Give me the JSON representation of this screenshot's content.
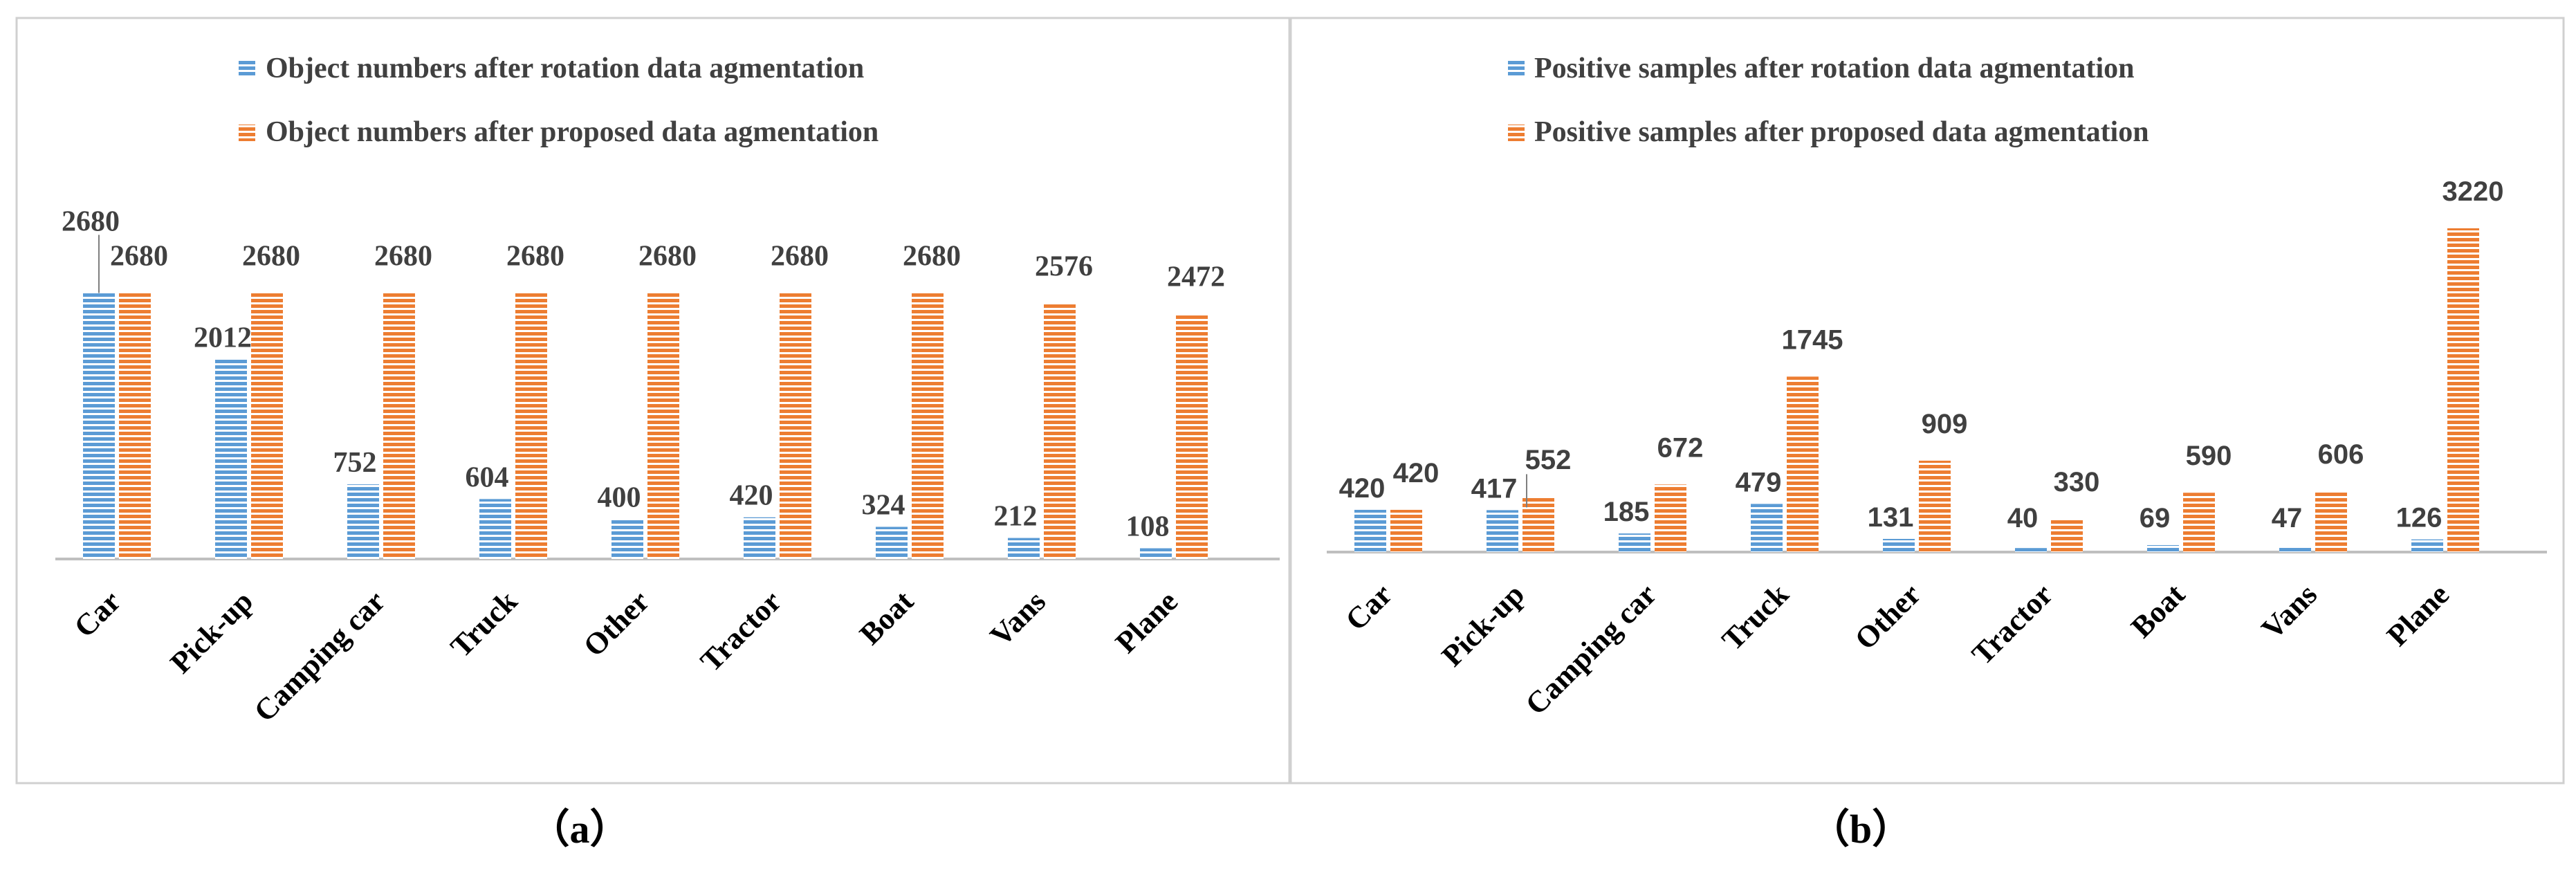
{
  "colors": {
    "series1": "#5b9bd5",
    "series2": "#ed7d31",
    "stripe": "#ffffff",
    "frame": "#d0d0d0",
    "axis": "#bfbfbf",
    "text": "#404040"
  },
  "chart_data": [
    {
      "type": "bar",
      "panel_label": "（a）",
      "title": "",
      "xlabel": "",
      "ylabel": "",
      "ylim": [
        0,
        3220
      ],
      "legend_position": "top-center",
      "grid": false,
      "categories": [
        "Car",
        "Pick-up",
        "Camping car",
        "Truck",
        "Other",
        "Tractor",
        "Boat",
        "Vans",
        "Plane"
      ],
      "series": [
        {
          "name": "Object numbers after rotation data agmentation",
          "values": [
            2680,
            2012,
            752,
            604,
            400,
            420,
            324,
            212,
            108
          ]
        },
        {
          "name": "Object numbers after proposed data agmentation",
          "values": [
            2680,
            2680,
            2680,
            2680,
            2680,
            2680,
            2680,
            2576,
            2472
          ]
        }
      ]
    },
    {
      "type": "bar",
      "panel_label": "（b）",
      "title": "",
      "xlabel": "",
      "ylabel": "",
      "ylim": [
        0,
        3220
      ],
      "legend_position": "top-center",
      "grid": false,
      "categories": [
        "Car",
        "Pick-up",
        "Camping car",
        "Truck",
        "Other",
        "Tractor",
        "Boat",
        "Vans",
        "Plane"
      ],
      "series": [
        {
          "name": "Positive samples after rotation data agmentation",
          "values": [
            420,
            417,
            185,
            479,
            131,
            40,
            69,
            47,
            126
          ]
        },
        {
          "name": "Positive samples after proposed data agmentation",
          "values": [
            420,
            552,
            672,
            1745,
            909,
            330,
            590,
            606,
            3220
          ]
        }
      ]
    }
  ]
}
